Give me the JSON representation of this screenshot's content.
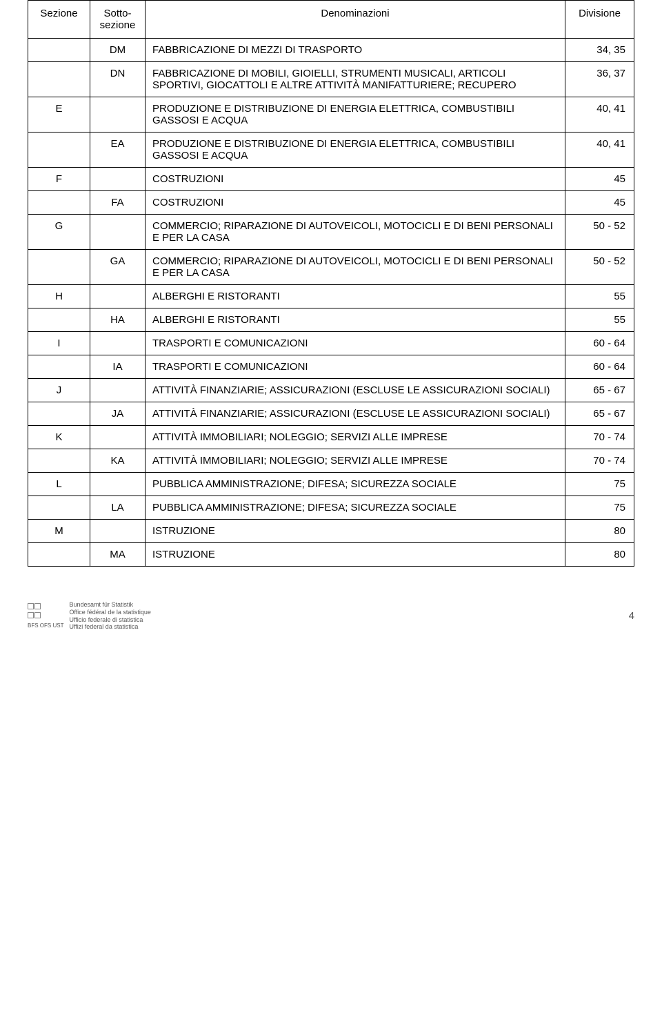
{
  "headers": {
    "sezione": "Sezione",
    "sotto": "Sotto-\nsezione",
    "denom": "Denominazioni",
    "div": "Divisione"
  },
  "rows": [
    {
      "sezione": "",
      "sotto": "DM",
      "denom": "FABBRICAZIONE DI MEZZI DI TRASPORTO",
      "div": "34, 35"
    },
    {
      "sezione": "",
      "sotto": "DN",
      "denom": "FABBRICAZIONE DI MOBILI, GIOIELLI, STRUMENTI MUSICALI, ARTICOLI SPORTIVI, GIOCATTOLI E ALTRE ATTIVITÀ MANIFATTURIERE; RECUPERO",
      "div": "36, 37"
    },
    {
      "sezione": "E",
      "sotto": "",
      "denom": "PRODUZIONE E DISTRIBUZIONE DI ENERGIA ELETTRICA, COMBUSTIBILI GASSOSI E ACQUA",
      "div": "40, 41"
    },
    {
      "sezione": "",
      "sotto": "EA",
      "denom": "PRODUZIONE E DISTRIBUZIONE DI ENERGIA ELETTRICA, COMBUSTIBILI GASSOSI E ACQUA",
      "div": "40, 41"
    },
    {
      "sezione": "F",
      "sotto": "",
      "denom": "COSTRUZIONI",
      "div": "45"
    },
    {
      "sezione": "",
      "sotto": "FA",
      "denom": "COSTRUZIONI",
      "div": "45"
    },
    {
      "sezione": "G",
      "sotto": "",
      "denom": "COMMERCIO; RIPARAZIONE DI AUTOVEICOLI, MOTOCICLI E DI BENI PERSONALI E PER LA CASA",
      "div": "50 - 52"
    },
    {
      "sezione": "",
      "sotto": "GA",
      "denom": "COMMERCIO; RIPARAZIONE DI AUTOVEICOLI, MOTOCICLI E DI BENI PERSONALI E PER LA CASA",
      "div": "50 - 52"
    },
    {
      "sezione": "H",
      "sotto": "",
      "denom": "ALBERGHI E RISTORANTI",
      "div": "55"
    },
    {
      "sezione": "",
      "sotto": "HA",
      "denom": "ALBERGHI E RISTORANTI",
      "div": "55"
    },
    {
      "sezione": "I",
      "sotto": "",
      "denom": "TRASPORTI E COMUNICAZIONI",
      "div": "60 - 64"
    },
    {
      "sezione": "",
      "sotto": "IA",
      "denom": "TRASPORTI E COMUNICAZIONI",
      "div": "60 - 64"
    },
    {
      "sezione": "J",
      "sotto": "",
      "denom": "ATTIVITÀ FINANZIARIE; ASSICURAZIONI (ESCLUSE LE ASSICURAZIONI SOCIALI)",
      "div": "65 - 67"
    },
    {
      "sezione": "",
      "sotto": "JA",
      "denom": "ATTIVITÀ FINANZIARIE; ASSICURAZIONI (ESCLUSE LE ASSICURAZIONI SOCIALI)",
      "div": "65 - 67"
    },
    {
      "sezione": "K",
      "sotto": "",
      "denom": "ATTIVITÀ IMMOBILIARI; NOLEGGIO; SERVIZI ALLE IMPRESE",
      "div": "70 - 74"
    },
    {
      "sezione": "",
      "sotto": "KA",
      "denom": "ATTIVITÀ IMMOBILIARI; NOLEGGIO; SERVIZI ALLE IMPRESE",
      "div": "70 - 74"
    },
    {
      "sezione": "L",
      "sotto": "",
      "denom": "PUBBLICA AMMINISTRAZIONE; DIFESA; SICUREZZA SOCIALE",
      "div": "75"
    },
    {
      "sezione": "",
      "sotto": "LA",
      "denom": "PUBBLICA AMMINISTRAZIONE; DIFESA; SICUREZZA SOCIALE",
      "div": "75"
    },
    {
      "sezione": "M",
      "sotto": "",
      "denom": "ISTRUZIONE",
      "div": "80"
    },
    {
      "sezione": "",
      "sotto": "MA",
      "denom": "ISTRUZIONE",
      "div": "80"
    }
  ],
  "footer": {
    "acronym": "BFS  OFS  UST",
    "lines": [
      "Bundesamt für Statistik",
      "Office fédéral de la statistique",
      "Ufficio federale di statistica",
      "Uffizi federal da statistica"
    ],
    "page_number": "4"
  },
  "style": {
    "font_family": "Arial",
    "font_size_body": 15,
    "font_size_footer": 9,
    "border_color": "#000000",
    "background": "#ffffff",
    "text_color": "#000000"
  }
}
